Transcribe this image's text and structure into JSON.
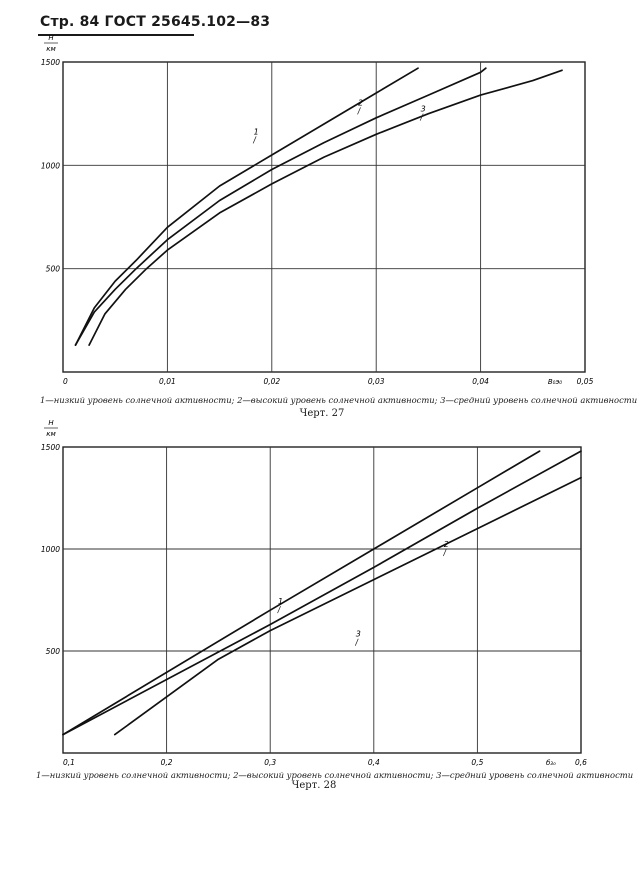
{
  "header": {
    "text": "Стр. 84 ГОСТ 25645.102—83"
  },
  "chart_data": [
    {
      "type": "line",
      "title": "Черт. 27",
      "ylabel_top": "H",
      "ylabel_bottom": "км",
      "xlabel": "B₀э₀",
      "xlim": [
        0,
        0.05
      ],
      "ylim": [
        0,
        1500
      ],
      "grid": true,
      "xticks": [
        "0",
        "0,01",
        "0,02",
        "0,03",
        "0,04",
        "0,05"
      ],
      "yticks": [
        "500",
        "1000",
        "1500"
      ],
      "caption": "1—низкий уровень солнечной активности; 2—высокий уровень солнечной активности; 3—средний уровень солнечной активности",
      "series": [
        {
          "name": "1",
          "x": [
            0.0012,
            0.003,
            0.005,
            0.007,
            0.01,
            0.015,
            0.02,
            0.025,
            0.03,
            0.034
          ],
          "y": [
            130,
            310,
            440,
            540,
            700,
            900,
            1050,
            1200,
            1350,
            1470
          ]
        },
        {
          "name": "2",
          "x": [
            0.0012,
            0.003,
            0.005,
            0.007,
            0.01,
            0.015,
            0.02,
            0.025,
            0.03,
            0.035,
            0.04,
            0.0405
          ],
          "y": [
            130,
            290,
            400,
            500,
            640,
            830,
            980,
            1110,
            1230,
            1340,
            1450,
            1470
          ]
        },
        {
          "name": "3",
          "x": [
            0.0025,
            0.004,
            0.006,
            0.008,
            0.01,
            0.015,
            0.02,
            0.025,
            0.03,
            0.035,
            0.04,
            0.045,
            0.0478
          ],
          "y": [
            130,
            280,
            400,
            500,
            590,
            770,
            910,
            1040,
            1150,
            1250,
            1340,
            1410,
            1460
          ]
        }
      ],
      "labels": [
        {
          "text": "1",
          "x": 0.0185,
          "y": 1150
        },
        {
          "text": "2",
          "x": 0.0285,
          "y": 1290
        },
        {
          "text": "3",
          "x": 0.0345,
          "y": 1260
        }
      ]
    },
    {
      "type": "line",
      "title": "Черт. 28",
      "ylabel_top": "H",
      "ylabel_bottom": "км",
      "xlabel": "б₃ₒ",
      "xlim": [
        0.1,
        0.6
      ],
      "ylim": [
        0,
        1500
      ],
      "grid": true,
      "xticks": [
        "0,1",
        "0,2",
        "0,3",
        "0,4",
        "0,5",
        "0,6"
      ],
      "yticks": [
        "500",
        "1000",
        "1500"
      ],
      "caption": "1—низкий уровень солнечной активности; 2—высокий уровень солнечной активности; 3—средний уровень солнечной активности",
      "series": [
        {
          "name": "1",
          "x": [
            0.1,
            0.3,
            0.4,
            0.5,
            0.56
          ],
          "y": [
            90,
            700,
            1000,
            1300,
            1480
          ]
        },
        {
          "name": "2",
          "x": [
            0.1,
            0.3,
            0.4,
            0.5,
            0.6
          ],
          "y": [
            90,
            630,
            910,
            1200,
            1480
          ]
        },
        {
          "name": "3",
          "x": [
            0.15,
            0.25,
            0.3,
            0.4,
            0.5,
            0.6
          ],
          "y": [
            90,
            460,
            600,
            850,
            1100,
            1350
          ]
        }
      ],
      "labels": [
        {
          "text": "1",
          "x": 0.31,
          "y": 730
        },
        {
          "text": "2",
          "x": 0.47,
          "y": 1010
        },
        {
          "text": "3",
          "x": 0.385,
          "y": 570
        }
      ]
    }
  ]
}
